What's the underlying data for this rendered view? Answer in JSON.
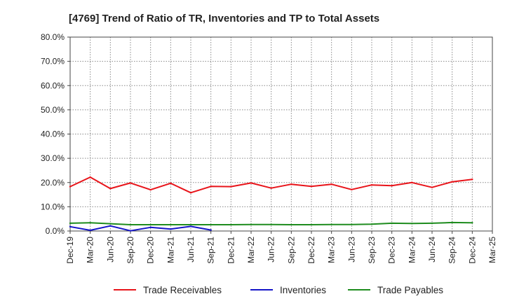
{
  "chart_data": {
    "type": "line",
    "title": "[4769]  Trend of Ratio of TR, Inventories and TP to Total Assets",
    "xlabel": "",
    "ylabel": "",
    "ylim": [
      0,
      80
    ],
    "y_ticks": [
      "0.0%",
      "10.0%",
      "20.0%",
      "30.0%",
      "40.0%",
      "50.0%",
      "60.0%",
      "70.0%",
      "80.0%"
    ],
    "x_ticks": [
      "Dec-19",
      "Mar-20",
      "Jun-20",
      "Sep-20",
      "Dec-20",
      "Mar-21",
      "Jun-21",
      "Sep-21",
      "Dec-21",
      "Mar-22",
      "Jun-22",
      "Sep-22",
      "Dec-22",
      "Mar-23",
      "Jun-23",
      "Sep-23",
      "Dec-23",
      "Mar-24",
      "Jun-24",
      "Sep-24",
      "Dec-24",
      "Mar-25"
    ],
    "grid": true,
    "legend_position": "bottom",
    "series": [
      {
        "name": "Trade Receivables",
        "color": "#e8141a",
        "values": [
          18.3,
          22.2,
          17.5,
          19.8,
          17.0,
          19.7,
          15.8,
          18.4,
          18.3,
          19.8,
          17.7,
          19.3,
          18.4,
          19.3,
          17.1,
          19.0,
          18.7,
          20.0,
          18.0,
          20.3,
          21.3
        ]
      },
      {
        "name": "Inventories",
        "color": "#1414c8",
        "values": [
          1.8,
          0.3,
          2.1,
          0.1,
          1.5,
          0.8,
          1.9,
          0.4
        ]
      },
      {
        "name": "Trade Payables",
        "color": "#1e8c1e",
        "values": [
          3.2,
          3.4,
          3.0,
          2.6,
          2.6,
          2.6,
          2.6,
          2.6,
          2.6,
          2.7,
          2.7,
          2.6,
          2.6,
          2.7,
          2.7,
          2.8,
          3.2,
          3.1,
          3.2,
          3.5,
          3.4
        ]
      }
    ]
  }
}
